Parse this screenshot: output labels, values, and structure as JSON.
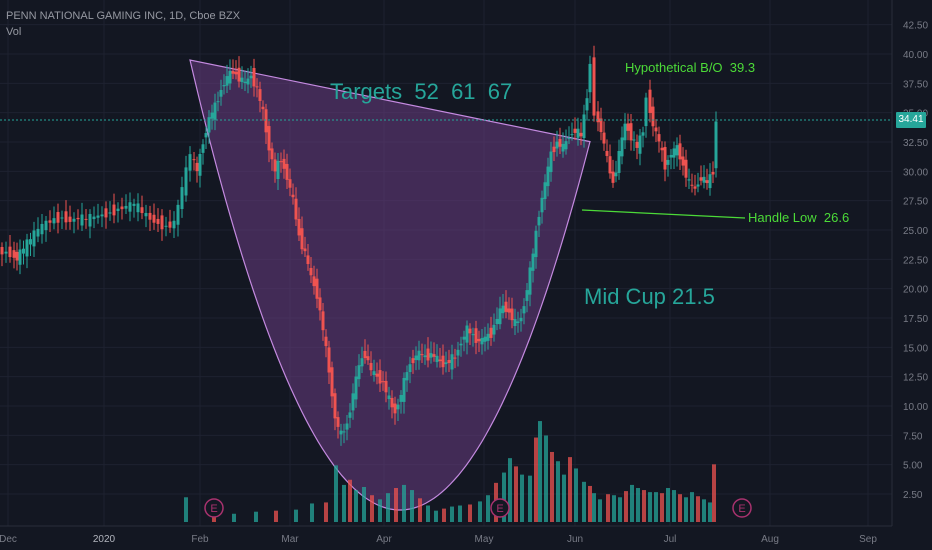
{
  "header": {
    "title": "PENN NATIONAL GAMING INC, 1D, Cboe BZX",
    "volume_label": "Vol"
  },
  "last_price": "34.41",
  "annotations": {
    "targets": "Targets  52  61  67",
    "breakout": "Hypothetical B/O  39.3",
    "handle_low": "Handle Low  26.6",
    "mid_cup": "Mid Cup 21.5"
  },
  "colors": {
    "background": "#131722",
    "up": "#26a69a",
    "down": "#ef5350",
    "cup_fill": "#6a3d82",
    "cup_stroke": "#c48ae0",
    "annotation_teal": "#26a69a",
    "annotation_green": "#4cdb38",
    "earnings": "#a8326e"
  },
  "chart_data": {
    "type": "candlestick",
    "title": "PENN NATIONAL GAMING INC, 1D, Cboe BZX",
    "y_axis_ticks": [
      "42.50",
      "40.00",
      "37.50",
      "35.00",
      "32.50",
      "30.00",
      "27.50",
      "25.00",
      "22.50",
      "20.00",
      "17.50",
      "15.00",
      "12.50",
      "10.00",
      "7.50",
      "5.00",
      "2.50"
    ],
    "x_axis_ticks": [
      "Dec",
      "2020",
      "Feb",
      "Mar",
      "Apr",
      "May",
      "Jun",
      "Jul",
      "Aug",
      "Sep"
    ],
    "earnings_markers": [
      "E",
      "E",
      "E"
    ],
    "price_path": [
      [
        0,
        23.2
      ],
      [
        12,
        23.0
      ],
      [
        18,
        22.6
      ],
      [
        25,
        23.4
      ],
      [
        32,
        24.2
      ],
      [
        40,
        25.0
      ],
      [
        48,
        25.6
      ],
      [
        56,
        25.9
      ],
      [
        64,
        26.1
      ],
      [
        72,
        25.8
      ],
      [
        80,
        26.0
      ],
      [
        88,
        25.9
      ],
      [
        96,
        26.1
      ],
      [
        104,
        26.3
      ],
      [
        112,
        26.5
      ],
      [
        120,
        26.8
      ],
      [
        128,
        27.0
      ],
      [
        136,
        27.2
      ],
      [
        144,
        26.5
      ],
      [
        152,
        26.0
      ],
      [
        160,
        25.6
      ],
      [
        168,
        25.3
      ],
      [
        176,
        25.6
      ],
      [
        184,
        28.5
      ],
      [
        192,
        31.5
      ],
      [
        198,
        30.0
      ],
      [
        204,
        32.5
      ],
      [
        210,
        34.5
      ],
      [
        216,
        35.5
      ],
      [
        222,
        37.0
      ],
      [
        228,
        38.0
      ],
      [
        234,
        38.5
      ],
      [
        240,
        38.0
      ],
      [
        246,
        37.5
      ],
      [
        252,
        38.2
      ],
      [
        258,
        37.0
      ],
      [
        264,
        35.0
      ],
      [
        270,
        32.0
      ],
      [
        276,
        30.0
      ],
      [
        282,
        31.0
      ],
      [
        288,
        29.5
      ],
      [
        294,
        27.5
      ],
      [
        300,
        24.5
      ],
      [
        306,
        23.0
      ],
      [
        312,
        21.0
      ],
      [
        318,
        19.5
      ],
      [
        324,
        16.5
      ],
      [
        330,
        13.0
      ],
      [
        336,
        9.0
      ],
      [
        342,
        7.5
      ],
      [
        348,
        8.5
      ],
      [
        354,
        11.0
      ],
      [
        360,
        13.5
      ],
      [
        366,
        14.5
      ],
      [
        372,
        13.0
      ],
      [
        378,
        12.5
      ],
      [
        384,
        12.0
      ],
      [
        390,
        10.5
      ],
      [
        396,
        9.5
      ],
      [
        402,
        11.0
      ],
      [
        408,
        13.0
      ],
      [
        414,
        14.0
      ],
      [
        420,
        14.5
      ],
      [
        426,
        14.2
      ],
      [
        432,
        14.4
      ],
      [
        438,
        14.0
      ],
      [
        444,
        13.6
      ],
      [
        450,
        13.8
      ],
      [
        456,
        14.2
      ],
      [
        462,
        15.5
      ],
      [
        468,
        16.5
      ],
      [
        474,
        16.0
      ],
      [
        480,
        15.5
      ],
      [
        486,
        15.8
      ],
      [
        492,
        16.2
      ],
      [
        498,
        17.5
      ],
      [
        504,
        18.5
      ],
      [
        510,
        18.0
      ],
      [
        516,
        17.0
      ],
      [
        522,
        17.5
      ],
      [
        528,
        20.0
      ],
      [
        534,
        23.0
      ],
      [
        540,
        26.5
      ],
      [
        546,
        29.0
      ],
      [
        552,
        31.5
      ],
      [
        558,
        32.5
      ],
      [
        564,
        32.0
      ],
      [
        570,
        33.0
      ],
      [
        576,
        33.5
      ],
      [
        582,
        33.0
      ],
      [
        588,
        36.5
      ],
      [
        592,
        39.3
      ],
      [
        596,
        35.0
      ],
      [
        602,
        33.5
      ],
      [
        608,
        31.0
      ],
      [
        614,
        29.0
      ],
      [
        620,
        31.5
      ],
      [
        626,
        34.0
      ],
      [
        632,
        33.0
      ],
      [
        638,
        32.0
      ],
      [
        644,
        33.5
      ],
      [
        648,
        36.5
      ],
      [
        654,
        34.0
      ],
      [
        660,
        32.5
      ],
      [
        666,
        30.5
      ],
      [
        672,
        31.5
      ],
      [
        678,
        32.0
      ],
      [
        684,
        30.5
      ],
      [
        690,
        29.0
      ],
      [
        696,
        28.5
      ],
      [
        702,
        29.5
      ],
      [
        708,
        29.0
      ],
      [
        714,
        30.0
      ],
      [
        716,
        34.41
      ]
    ],
    "volume_bars": [
      [
        186,
        2.4
      ],
      [
        214,
        0.9
      ],
      [
        234,
        0.8
      ],
      [
        256,
        1.0
      ],
      [
        276,
        1.1
      ],
      [
        296,
        1.2
      ],
      [
        312,
        1.8
      ],
      [
        326,
        1.9
      ],
      [
        336,
        5.5
      ],
      [
        344,
        3.6
      ],
      [
        350,
        4.1
      ],
      [
        356,
        3.1
      ],
      [
        364,
        3.4
      ],
      [
        372,
        2.6
      ],
      [
        380,
        2.2
      ],
      [
        388,
        2.8
      ],
      [
        396,
        3.3
      ],
      [
        404,
        3.6
      ],
      [
        412,
        3.1
      ],
      [
        420,
        2.3
      ],
      [
        428,
        1.6
      ],
      [
        436,
        1.1
      ],
      [
        444,
        1.3
      ],
      [
        452,
        1.5
      ],
      [
        460,
        1.6
      ],
      [
        470,
        1.7
      ],
      [
        480,
        2.0
      ],
      [
        488,
        2.6
      ],
      [
        496,
        3.8
      ],
      [
        504,
        4.8
      ],
      [
        510,
        6.2
      ],
      [
        516,
        5.4
      ],
      [
        522,
        4.6
      ],
      [
        530,
        4.5
      ],
      [
        536,
        8.2
      ],
      [
        540,
        9.8
      ],
      [
        546,
        8.4
      ],
      [
        552,
        6.8
      ],
      [
        558,
        5.9
      ],
      [
        564,
        4.6
      ],
      [
        570,
        6.3
      ],
      [
        576,
        5.2
      ],
      [
        584,
        3.9
      ],
      [
        590,
        3.5
      ],
      [
        594,
        2.8
      ],
      [
        600,
        2.2
      ],
      [
        608,
        2.7
      ],
      [
        614,
        2.6
      ],
      [
        620,
        2.4
      ],
      [
        626,
        3.0
      ],
      [
        632,
        3.6
      ],
      [
        638,
        3.3
      ],
      [
        644,
        3.1
      ],
      [
        650,
        2.9
      ],
      [
        656,
        2.9
      ],
      [
        662,
        2.8
      ],
      [
        668,
        3.3
      ],
      [
        674,
        3.1
      ],
      [
        680,
        2.7
      ],
      [
        686,
        2.4
      ],
      [
        692,
        2.9
      ],
      [
        698,
        2.5
      ],
      [
        704,
        2.2
      ],
      [
        710,
        1.9
      ],
      [
        714,
        5.6
      ]
    ]
  }
}
